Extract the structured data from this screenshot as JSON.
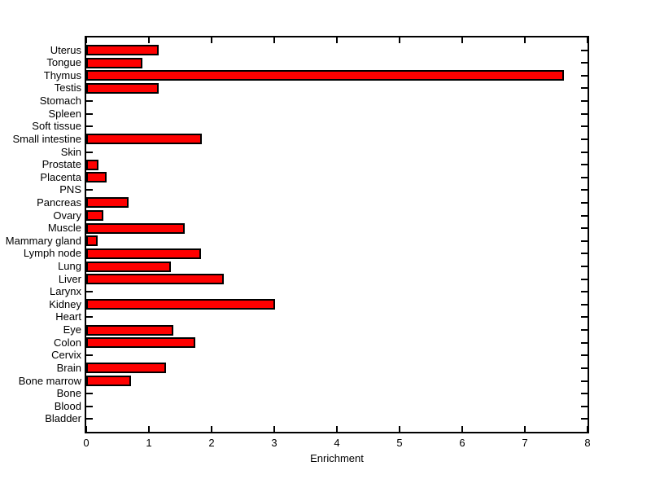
{
  "chart_data": {
    "type": "bar",
    "orientation": "horizontal",
    "title": "",
    "xlabel": "Enrichment",
    "ylabel": "",
    "xlim": [
      0,
      8
    ],
    "xticks": [
      0,
      1,
      2,
      3,
      4,
      5,
      6,
      7,
      8
    ],
    "grid": false,
    "legend": null,
    "category_order": "top-to-bottom",
    "bar_color": "#FF0000",
    "bar_edge_color": "#000000",
    "axis_color": "#000000",
    "background_color": "#FFFFFF",
    "categories": [
      "Uterus",
      "Tongue",
      "Thymus",
      "Testis",
      "Stomach",
      "Spleen",
      "Soft tissue",
      "Small intestine",
      "Skin",
      "Prostate",
      "Placenta",
      "PNS",
      "Pancreas",
      "Ovary",
      "Muscle",
      "Mammary gland",
      "Lymph node",
      "Lung",
      "Liver",
      "Larynx",
      "Kidney",
      "Heart",
      "Eye",
      "Colon",
      "Cervix",
      "Brain",
      "Bone marrow",
      "Bone",
      "Blood",
      "Bladder"
    ],
    "values": [
      1.15,
      0.9,
      7.62,
      1.15,
      0,
      0,
      0,
      1.85,
      0,
      0.2,
      0.33,
      0,
      0.67,
      0.27,
      1.57,
      0.18,
      1.83,
      1.35,
      2.19,
      0,
      3.01,
      0,
      1.39,
      1.74,
      0,
      1.27,
      0.72,
      0,
      0,
      0
    ]
  }
}
